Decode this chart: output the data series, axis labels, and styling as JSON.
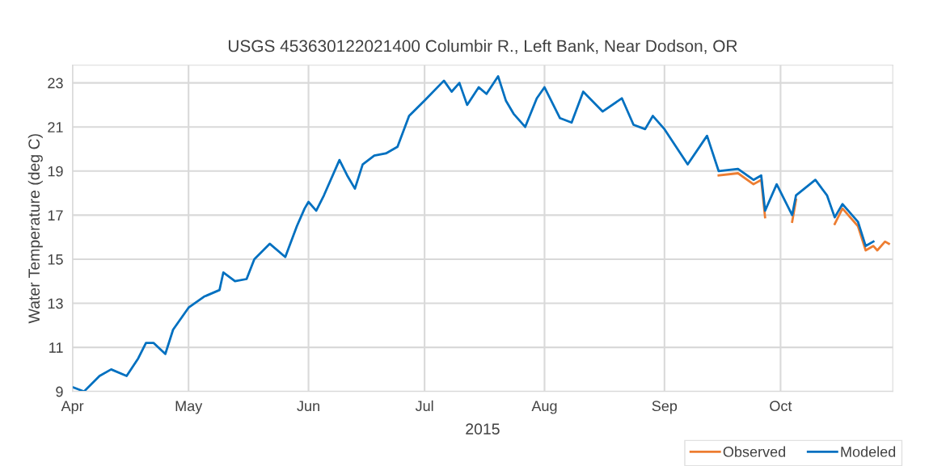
{
  "chart_data": {
    "type": "line",
    "title": "USGS 453630122021400 Columbir R., Left Bank, Near Dodson, OR",
    "xlabel": "2015",
    "ylabel": "Water Temperature (deg C)",
    "xlim": [
      "2015-04-01",
      "2015-10-30"
    ],
    "xticks": [
      {
        "value": "2015-04-01",
        "label": "Apr"
      },
      {
        "value": "2015-05-01",
        "label": "May"
      },
      {
        "value": "2015-06-01",
        "label": "Jun"
      },
      {
        "value": "2015-07-01",
        "label": "Jul"
      },
      {
        "value": "2015-08-01",
        "label": "Aug"
      },
      {
        "value": "2015-09-01",
        "label": "Sep"
      },
      {
        "value": "2015-10-01",
        "label": "Oct"
      }
    ],
    "ylim": [
      9,
      23.8
    ],
    "yticks": [
      9,
      11,
      13,
      15,
      17,
      19,
      21,
      23
    ],
    "grid": true,
    "legend": "bottom right",
    "series": [
      {
        "name": "Observed",
        "color": "#ed7d31",
        "x": [
          "2015-09-15",
          "2015-09-20",
          "2015-09-24",
          "2015-09-26",
          "2015-09-27",
          "2015-09-30",
          "2015-10-04",
          "2015-10-05",
          "2015-10-10",
          "2015-10-13",
          "2015-10-15",
          "2015-10-17",
          "2015-10-21",
          "2015-10-23",
          "2015-10-25",
          "2015-10-26",
          "2015-10-28",
          "2015-10-29"
        ],
        "values": [
          18.8,
          18.9,
          18.4,
          18.6,
          16.9,
          null,
          16.7,
          17.7,
          null,
          null,
          16.6,
          17.3,
          16.5,
          15.4,
          15.6,
          15.4,
          15.8,
          15.7
        ]
      },
      {
        "name": "Modeled",
        "color": "#0070c0",
        "x": [
          "2015-04-01",
          "2015-04-04",
          "2015-04-08",
          "2015-04-11",
          "2015-04-15",
          "2015-04-18",
          "2015-04-20",
          "2015-04-22",
          "2015-04-25",
          "2015-04-27",
          "2015-05-01",
          "2015-05-05",
          "2015-05-09",
          "2015-05-10",
          "2015-05-13",
          "2015-05-16",
          "2015-05-18",
          "2015-05-22",
          "2015-05-26",
          "2015-05-29",
          "2015-05-31",
          "2015-06-01",
          "2015-06-03",
          "2015-06-05",
          "2015-06-09",
          "2015-06-11",
          "2015-06-13",
          "2015-06-15",
          "2015-06-18",
          "2015-06-21",
          "2015-06-24",
          "2015-06-27",
          "2015-07-01",
          "2015-07-06",
          "2015-07-08",
          "2015-07-10",
          "2015-07-12",
          "2015-07-15",
          "2015-07-17",
          "2015-07-20",
          "2015-07-22",
          "2015-07-24",
          "2015-07-27",
          "2015-07-30",
          "2015-08-01",
          "2015-08-05",
          "2015-08-08",
          "2015-08-11",
          "2015-08-16",
          "2015-08-21",
          "2015-08-24",
          "2015-08-27",
          "2015-08-29",
          "2015-09-01",
          "2015-09-07",
          "2015-09-12",
          "2015-09-15",
          "2015-09-20",
          "2015-09-24",
          "2015-09-26",
          "2015-09-27",
          "2015-09-30",
          "2015-10-04",
          "2015-10-05",
          "2015-10-10",
          "2015-10-13",
          "2015-10-15",
          "2015-10-17",
          "2015-10-21",
          "2015-10-23",
          "2015-10-25"
        ],
        "values": [
          9.2,
          9.0,
          9.7,
          10.0,
          9.7,
          10.5,
          11.2,
          11.2,
          10.7,
          11.8,
          12.8,
          13.3,
          13.6,
          14.4,
          14.0,
          14.1,
          15.0,
          15.7,
          15.1,
          16.5,
          17.3,
          17.6,
          17.2,
          17.9,
          19.5,
          18.8,
          18.2,
          19.3,
          19.7,
          19.8,
          20.1,
          21.5,
          22.2,
          23.1,
          22.6,
          23.0,
          22.0,
          22.8,
          22.5,
          23.3,
          22.2,
          21.6,
          21.0,
          22.3,
          22.8,
          21.4,
          21.2,
          22.6,
          21.7,
          22.3,
          21.1,
          20.9,
          21.5,
          20.9,
          19.3,
          20.6,
          19.0,
          19.1,
          18.6,
          18.8,
          17.2,
          18.4,
          17.0,
          17.9,
          18.6,
          17.9,
          16.9,
          17.5,
          16.7,
          15.6,
          15.8
        ]
      }
    ]
  }
}
